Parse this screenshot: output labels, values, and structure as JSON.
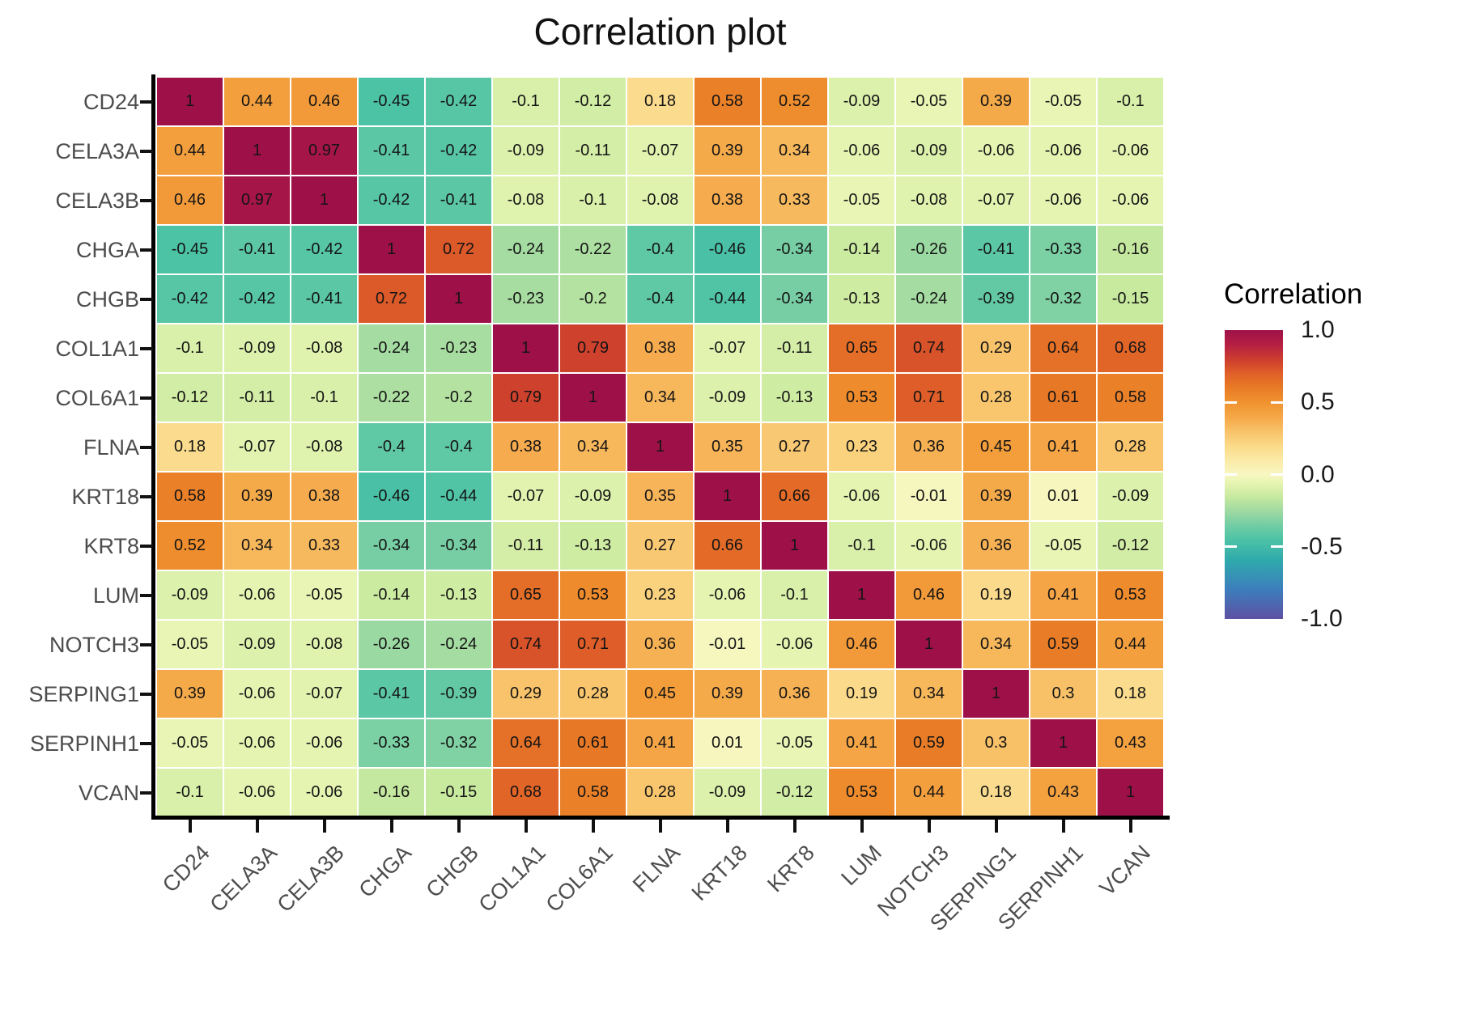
{
  "title": "Correlation plot",
  "legend": {
    "title": "Correlation",
    "tick_labels": [
      "1.0",
      "0.5",
      "0.0",
      "-0.5",
      "-1.0"
    ],
    "tick_values": [
      1.0,
      0.5,
      0.0,
      -0.5,
      -1.0
    ],
    "inner_tick_values": [
      0.5,
      0.0,
      -0.5
    ]
  },
  "chart_data": {
    "type": "heatmap",
    "title": "Correlation plot",
    "legend_title": "Correlation",
    "legend_position": "right",
    "value_range": [
      -1,
      1
    ],
    "categories": [
      "CD24",
      "CELA3A",
      "CELA3B",
      "CHGA",
      "CHGB",
      "COL1A1",
      "COL6A1",
      "FLNA",
      "KRT18",
      "KRT8",
      "LUM",
      "NOTCH3",
      "SERPING1",
      "SERPINH1",
      "VCAN"
    ],
    "matrix": [
      [
        1,
        0.44,
        0.46,
        -0.45,
        -0.42,
        -0.1,
        -0.12,
        0.18,
        0.58,
        0.52,
        -0.09,
        -0.05,
        0.39,
        -0.05,
        -0.1
      ],
      [
        0.44,
        1,
        0.97,
        -0.41,
        -0.42,
        -0.09,
        -0.11,
        -0.07,
        0.39,
        0.34,
        -0.06,
        -0.09,
        -0.06,
        -0.06,
        -0.06
      ],
      [
        0.46,
        0.97,
        1,
        -0.42,
        -0.41,
        -0.08,
        -0.1,
        -0.08,
        0.38,
        0.33,
        -0.05,
        -0.08,
        -0.07,
        -0.06,
        -0.06
      ],
      [
        -0.45,
        -0.41,
        -0.42,
        1,
        0.72,
        -0.24,
        -0.22,
        -0.4,
        -0.46,
        -0.34,
        -0.14,
        -0.26,
        -0.41,
        -0.33,
        -0.16
      ],
      [
        -0.42,
        -0.42,
        -0.41,
        0.72,
        1,
        -0.23,
        -0.2,
        -0.4,
        -0.44,
        -0.34,
        -0.13,
        -0.24,
        -0.39,
        -0.32,
        -0.15
      ],
      [
        -0.1,
        -0.09,
        -0.08,
        -0.24,
        -0.23,
        1,
        0.79,
        0.38,
        -0.07,
        -0.11,
        0.65,
        0.74,
        0.29,
        0.64,
        0.68
      ],
      [
        -0.12,
        -0.11,
        -0.1,
        -0.22,
        -0.2,
        0.79,
        1,
        0.34,
        -0.09,
        -0.13,
        0.53,
        0.71,
        0.28,
        0.61,
        0.58
      ],
      [
        0.18,
        -0.07,
        -0.08,
        -0.4,
        -0.4,
        0.38,
        0.34,
        1,
        0.35,
        0.27,
        0.23,
        0.36,
        0.45,
        0.41,
        0.28
      ],
      [
        0.58,
        0.39,
        0.38,
        -0.46,
        -0.44,
        -0.07,
        -0.09,
        0.35,
        1,
        0.66,
        -0.06,
        -0.01,
        0.39,
        0.01,
        -0.09
      ],
      [
        0.52,
        0.34,
        0.33,
        -0.34,
        -0.34,
        -0.11,
        -0.13,
        0.27,
        0.66,
        1,
        -0.1,
        -0.06,
        0.36,
        -0.05,
        -0.12
      ],
      [
        -0.09,
        -0.06,
        -0.05,
        -0.14,
        -0.13,
        0.65,
        0.53,
        0.23,
        -0.06,
        -0.1,
        1,
        0.46,
        0.19,
        0.41,
        0.53
      ],
      [
        -0.05,
        -0.09,
        -0.08,
        -0.26,
        -0.24,
        0.74,
        0.71,
        0.36,
        -0.01,
        -0.06,
        0.46,
        1,
        0.34,
        0.59,
        0.44
      ],
      [
        0.39,
        -0.06,
        -0.07,
        -0.41,
        -0.39,
        0.29,
        0.28,
        0.45,
        0.39,
        0.36,
        0.19,
        0.34,
        1,
        0.3,
        0.18
      ],
      [
        -0.05,
        -0.06,
        -0.06,
        -0.33,
        -0.32,
        0.64,
        0.61,
        0.41,
        0.01,
        -0.05,
        0.41,
        0.59,
        0.3,
        1,
        0.43
      ],
      [
        -0.1,
        -0.06,
        -0.06,
        -0.16,
        -0.15,
        0.68,
        0.58,
        0.28,
        -0.09,
        -0.12,
        0.53,
        0.44,
        0.18,
        0.43,
        1
      ]
    ],
    "colorscale": [
      [
        -1.0,
        "#5e50a3"
      ],
      [
        -0.8,
        "#3d7dbc"
      ],
      [
        -0.6,
        "#2fa8ad"
      ],
      [
        -0.45,
        "#4cc3a5"
      ],
      [
        -0.35,
        "#72cda4"
      ],
      [
        -0.25,
        "#a0daa2"
      ],
      [
        -0.15,
        "#c8ea9f"
      ],
      [
        -0.05,
        "#e9f5b4"
      ],
      [
        0.0,
        "#f8f7c2"
      ],
      [
        0.1,
        "#faeaa6"
      ],
      [
        0.2,
        "#fbd988"
      ],
      [
        0.3,
        "#f8c168"
      ],
      [
        0.4,
        "#f5a747"
      ],
      [
        0.5,
        "#f0922f"
      ],
      [
        0.6,
        "#e87b26"
      ],
      [
        0.7,
        "#e06028"
      ],
      [
        0.8,
        "#cc3d2e"
      ],
      [
        0.9,
        "#b51f44"
      ],
      [
        1.0,
        "#9e1148"
      ]
    ]
  }
}
